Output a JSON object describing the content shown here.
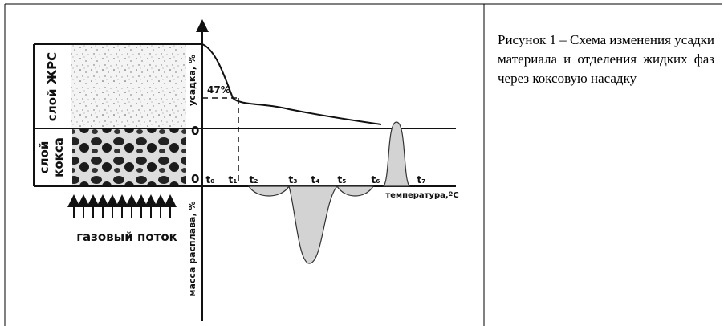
{
  "figure": {
    "labels": {
      "layer_ore": "слой ЖРС",
      "layer_coke": [
        "слой",
        "кокса"
      ],
      "gas_flow": "газовый поток",
      "shrinkage_axis": "усадка, %",
      "melt_axis": "масса расплава, %",
      "temperature_axis": "температура,ºС",
      "shrinkage_mark": "47%",
      "zero_upper": "0",
      "zero_lower": "0"
    },
    "temperature_points": [
      "t₀",
      "t₁",
      "t₂",
      "t₃",
      "t₄",
      "t₅",
      "t₆",
      "t₇"
    ]
  },
  "caption": "Рисунок 1 – Схема изменения усадки материала и отделения жидких фаз через коксовую насадку"
}
